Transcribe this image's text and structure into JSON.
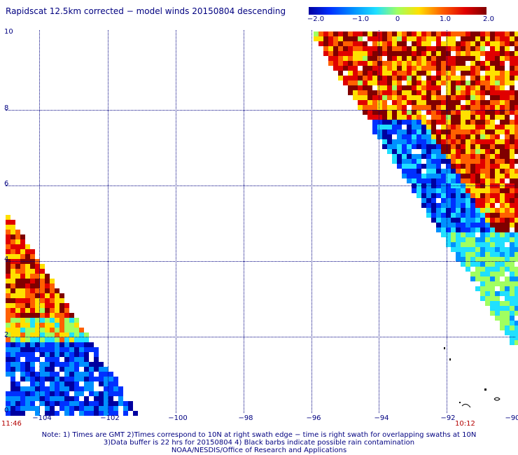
{
  "title": "Rapidscat 12.5km corrected − model winds 20150804 descending",
  "colorbar": {
    "labels": [
      "−2.0",
      "−1.0",
      "0",
      "1.0",
      "2.0"
    ],
    "range": [
      -2.0,
      2.0
    ],
    "colors": [
      "#0000a0",
      "#0030ff",
      "#0090ff",
      "#20e0ff",
      "#a0ff60",
      "#ffe000",
      "#ff6000",
      "#e00000",
      "#800000"
    ]
  },
  "axes": {
    "y_labels": [
      "10",
      "8",
      "6",
      "4",
      "2",
      "0"
    ],
    "x_labels": [
      "−104",
      "−102",
      "−100",
      "−98",
      "−96",
      "−94",
      "−92",
      "−90"
    ],
    "lon_range": [
      -105,
      -90
    ],
    "lat_range": [
      0,
      10
    ]
  },
  "swath_times": {
    "left": "11:46",
    "right": "10:12"
  },
  "notes": {
    "line1": "Note: 1) Times are GMT 2)Times correspond to 10N at right swath edge − time is right swath for overlapping swaths at 10N",
    "line2": "3)Data buffer is 22 hrs for 20150804 4) Black barbs indicate possible rain contamination",
    "line3": "NOAA/NESDIS/Office of Research and Applications"
  }
}
